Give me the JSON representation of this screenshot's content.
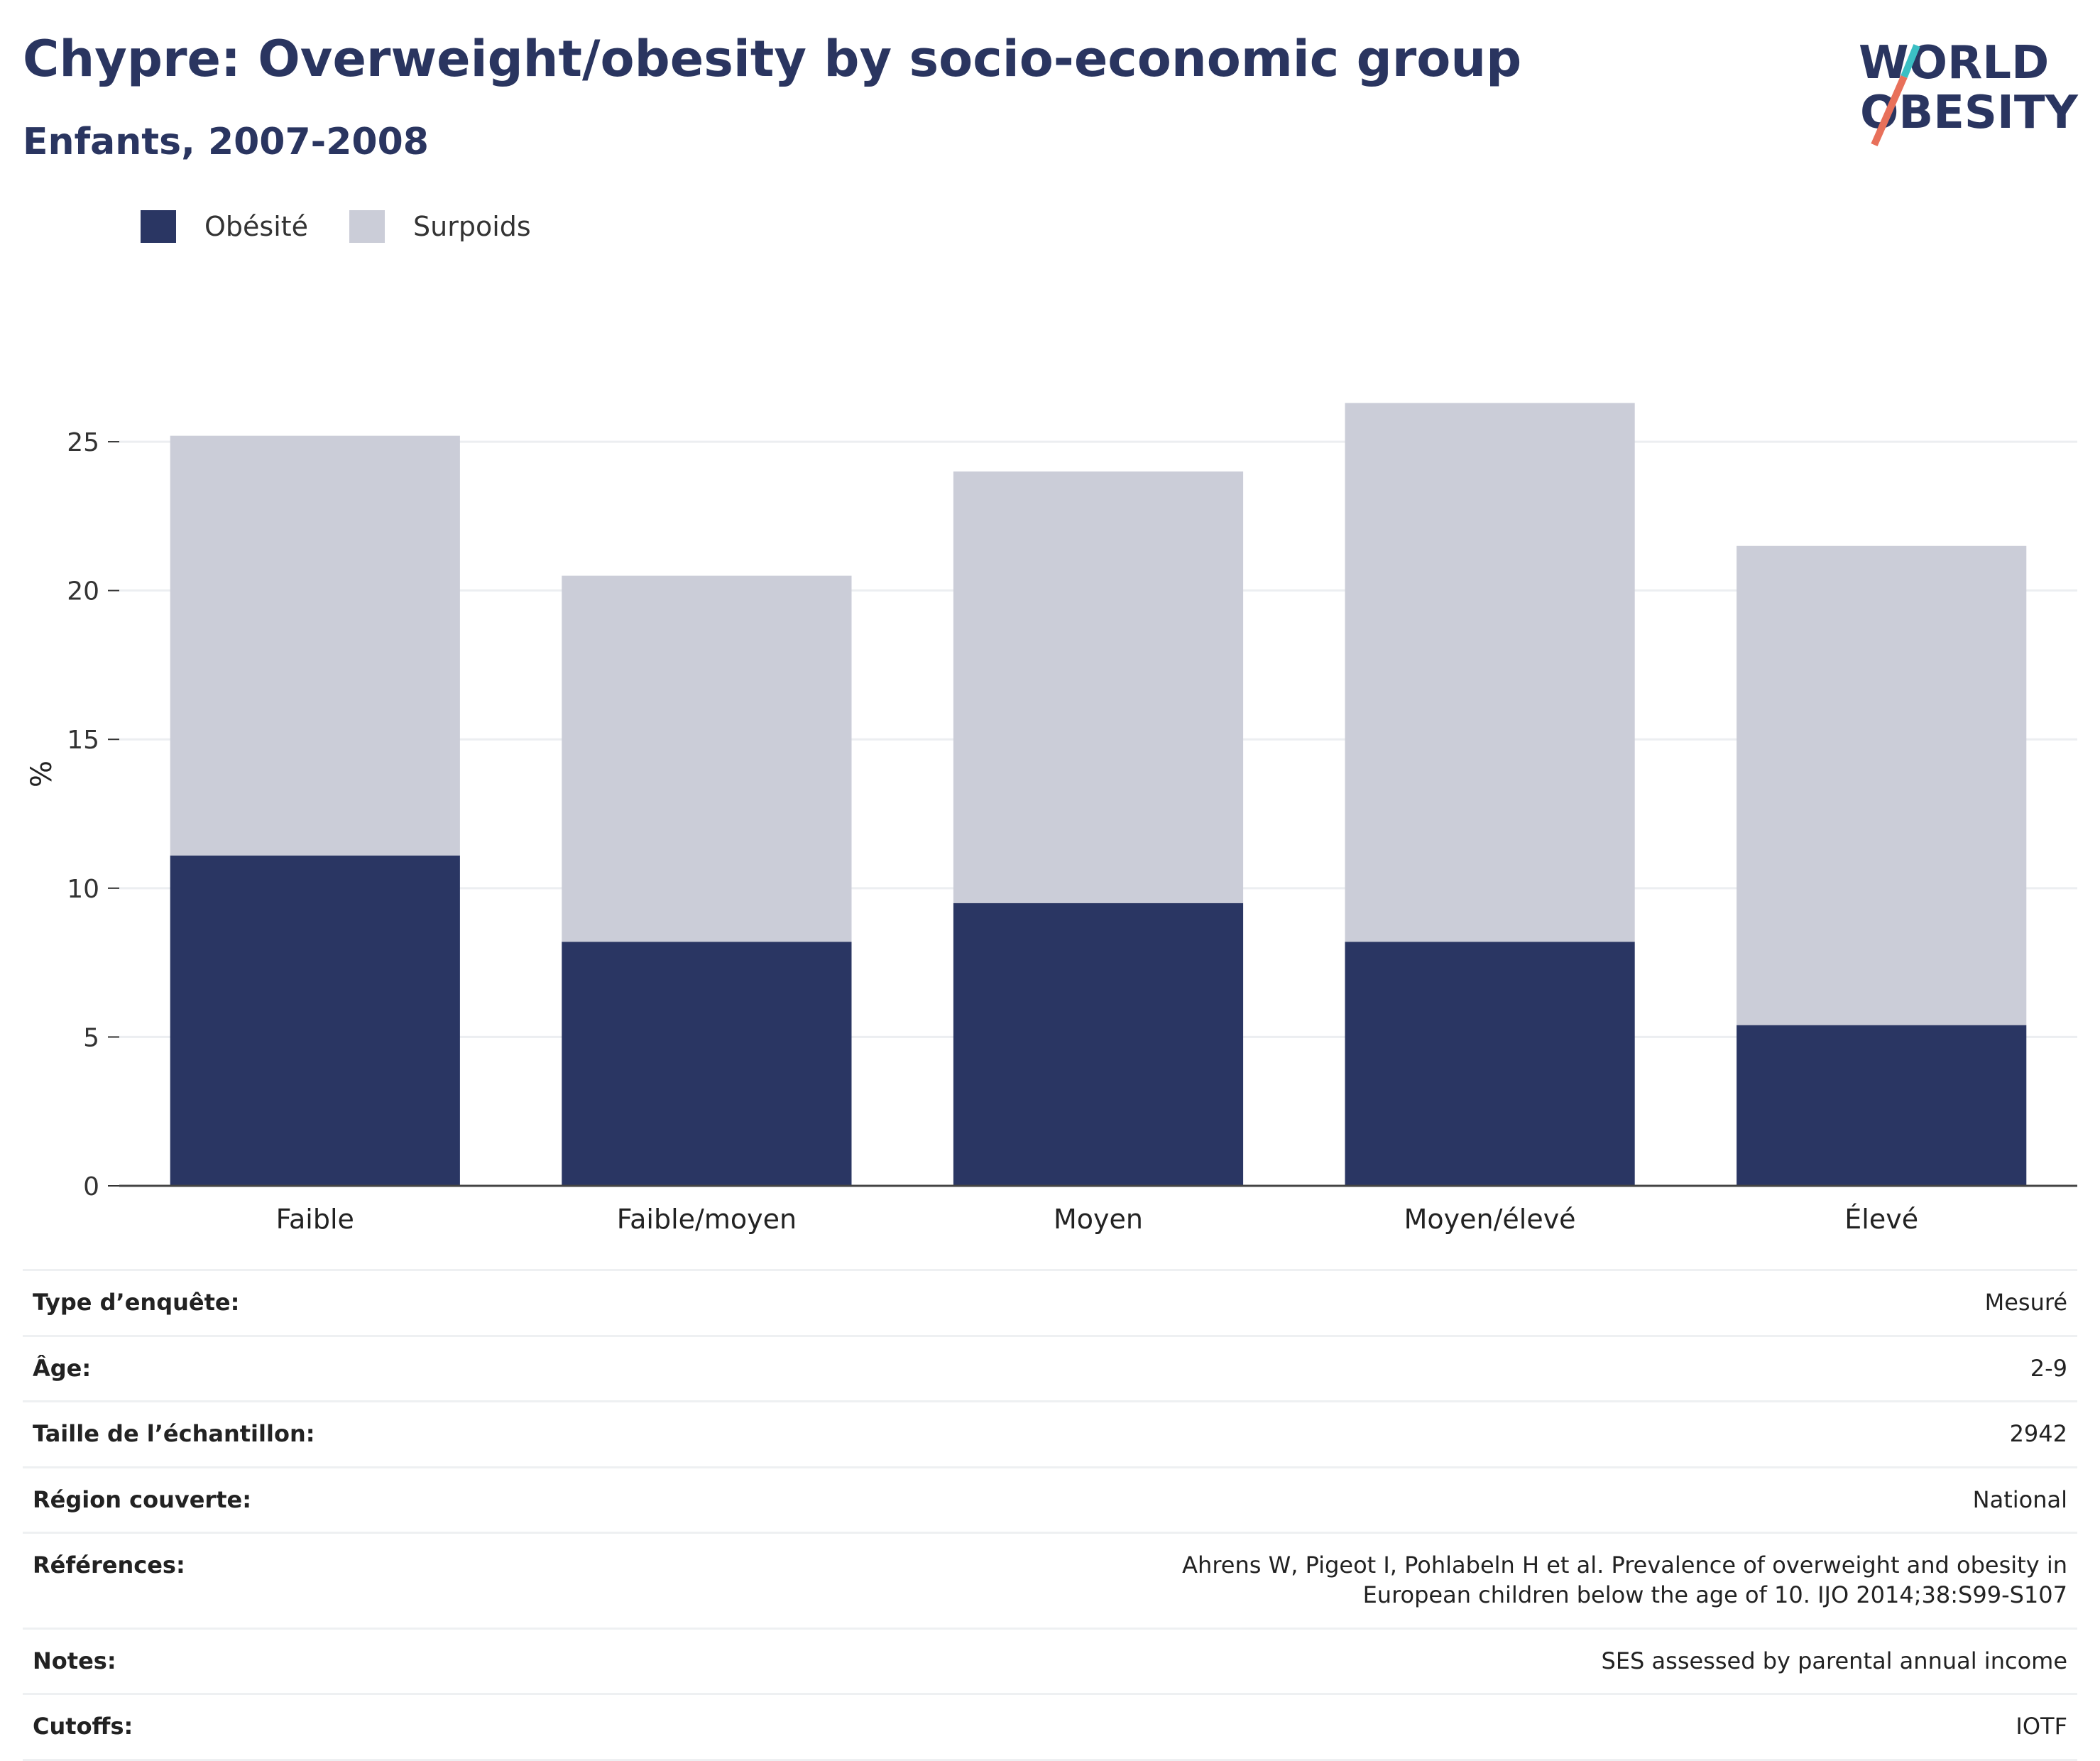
{
  "header": {
    "title": "Chypre: Overweight/obesity by socio-economic group",
    "subtitle": "Enfants, 2007-2008",
    "logo_line1": "WORLD",
    "logo_line2": "OBESITY"
  },
  "colors": {
    "obesity": "#2a3663",
    "overweight": "#cbcdd8",
    "text": "#2a3560"
  },
  "chart_data": {
    "type": "bar",
    "stacked": true,
    "categories": [
      "Faible",
      "Faible/moyen",
      "Moyen",
      "Moyen/élevé",
      "Élevé"
    ],
    "series": [
      {
        "name": "Obésité",
        "values": [
          11.1,
          8.2,
          9.5,
          8.2,
          5.4
        ]
      },
      {
        "name": "Surpoids",
        "values": [
          14.1,
          12.3,
          14.5,
          18.1,
          16.1
        ]
      }
    ],
    "ylabel": "%",
    "ylim": [
      0,
      26.6
    ],
    "yticks": [
      0,
      5,
      10,
      15,
      20,
      25
    ],
    "grid": true,
    "legend_position": "top-left"
  },
  "details": [
    {
      "label": "Type d’enquête:",
      "value": "Mesuré"
    },
    {
      "label": "Âge:",
      "value": "2-9"
    },
    {
      "label": "Taille de l’échantillon:",
      "value": "2942"
    },
    {
      "label": "Région couverte:",
      "value": "National"
    },
    {
      "label": "Références:",
      "value": "Ahrens W, Pigeot I, Pohlabeln H et al. Prevalence of overweight and obesity in European children below the age of 10. IJO 2014;38:S99-S107"
    },
    {
      "label": "Notes:",
      "value": "SES assessed by parental annual income"
    },
    {
      "label": "Cutoffs:",
      "value": "IOTF"
    }
  ]
}
